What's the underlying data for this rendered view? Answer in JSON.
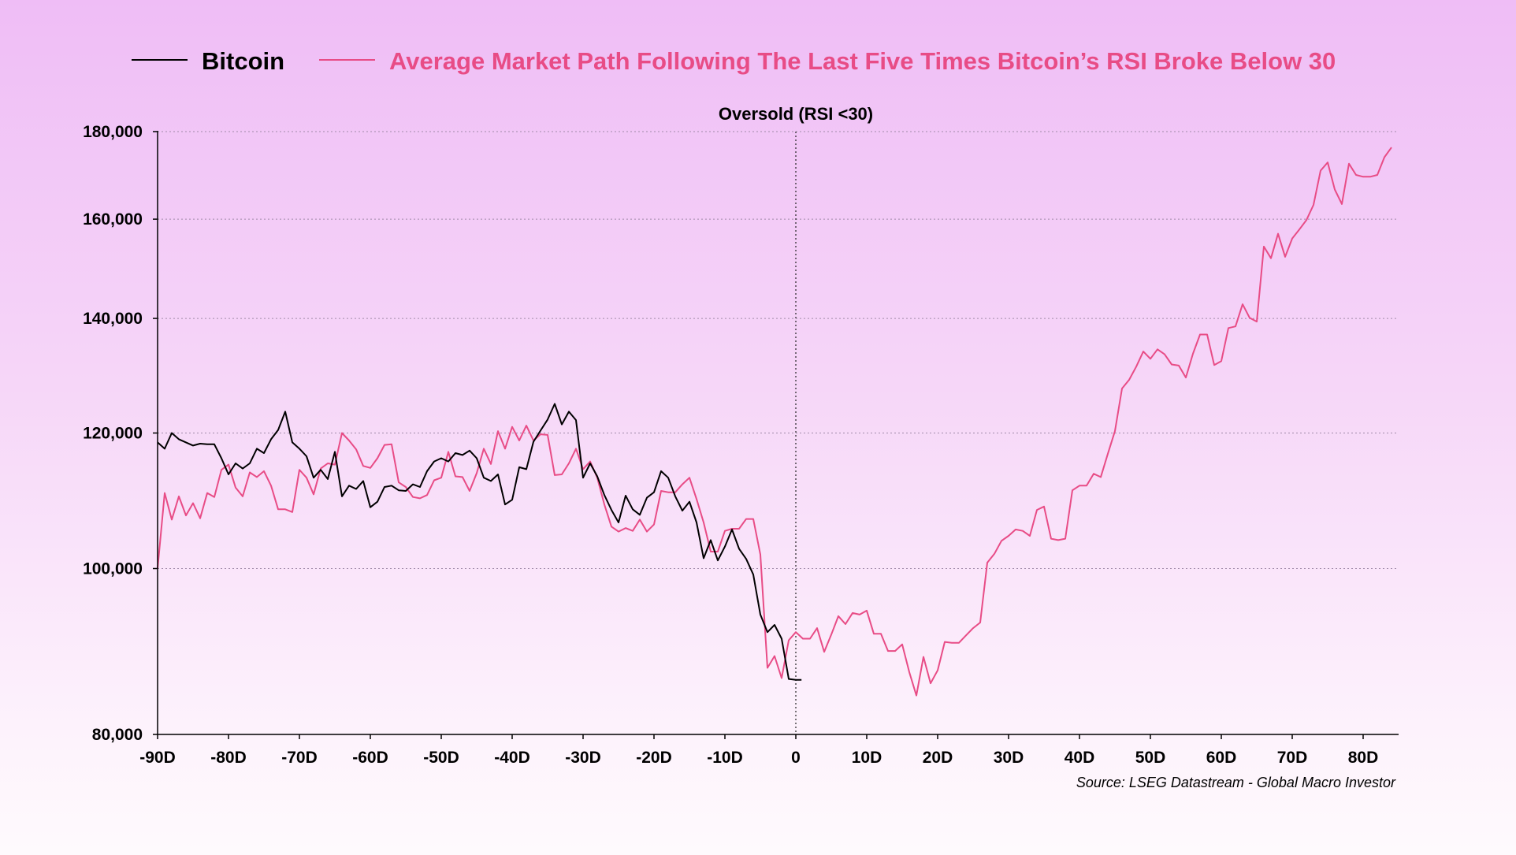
{
  "chart_data": {
    "type": "line",
    "title": "",
    "xlabel": "",
    "ylabel": "",
    "y_scale": "log",
    "xlim": [
      -90,
      86
    ],
    "ylim": [
      80000,
      180000
    ],
    "x_ticks": [
      -90,
      -80,
      -70,
      -60,
      -50,
      -40,
      -30,
      -20,
      -10,
      0,
      10,
      20,
      30,
      40,
      50,
      60,
      70,
      80
    ],
    "x_tick_labels": [
      "-90D",
      "-80D",
      "-70D",
      "-60D",
      "-50D",
      "-40D",
      "-30D",
      "-20D",
      "-10D",
      "0",
      "10D",
      "20D",
      "30D",
      "40D",
      "50D",
      "60D",
      "70D",
      "80D"
    ],
    "y_ticks": [
      80000,
      100000,
      120000,
      140000,
      160000,
      180000
    ],
    "y_tick_labels": [
      "80,000",
      "100,000",
      "120,000",
      "140,000",
      "160,000",
      "180,000"
    ],
    "grid": "horizontal dotted",
    "legend_position": "top",
    "annotation": {
      "x": 0,
      "label": "Oversold (RSI <30)"
    },
    "source": "Source: LSEG Datastream - Global Macro Investor",
    "series": [
      {
        "name": "Bitcoin",
        "color": "#000000",
        "points": [
          [
            -90,
            118500
          ],
          [
            -89,
            117500
          ],
          [
            -88,
            120000
          ],
          [
            -87,
            119000
          ],
          [
            -86,
            118500
          ],
          [
            -85,
            118000
          ],
          [
            -84,
            118300
          ],
          [
            -83,
            118200
          ],
          [
            -82,
            118200
          ],
          [
            -81,
            116000
          ],
          [
            -80,
            113500
          ],
          [
            -79,
            115200
          ],
          [
            -78,
            114400
          ],
          [
            -77,
            115200
          ],
          [
            -76,
            117500
          ],
          [
            -75,
            116800
          ],
          [
            -74,
            119000
          ],
          [
            -73,
            120500
          ],
          [
            -72,
            123500
          ],
          [
            -71,
            118500
          ],
          [
            -70,
            117500
          ],
          [
            -69,
            116300
          ],
          [
            -68,
            113000
          ],
          [
            -67,
            114200
          ],
          [
            -66,
            112800
          ],
          [
            -65,
            117000
          ],
          [
            -64,
            110200
          ],
          [
            -63,
            111800
          ],
          [
            -62,
            111300
          ],
          [
            -61,
            112500
          ],
          [
            -60,
            108600
          ],
          [
            -59,
            109400
          ],
          [
            -58,
            111600
          ],
          [
            -57,
            111800
          ],
          [
            -56,
            111100
          ],
          [
            -55,
            111000
          ],
          [
            -54,
            112000
          ],
          [
            -53,
            111600
          ],
          [
            -52,
            114000
          ],
          [
            -51,
            115500
          ],
          [
            -50,
            116000
          ],
          [
            -49,
            115500
          ],
          [
            -48,
            116800
          ],
          [
            -47,
            116500
          ],
          [
            -46,
            117200
          ],
          [
            -45,
            116000
          ],
          [
            -44,
            113000
          ],
          [
            -43,
            112500
          ],
          [
            -42,
            113500
          ],
          [
            -41,
            109000
          ],
          [
            -40,
            109700
          ],
          [
            -39,
            114600
          ],
          [
            -38,
            114300
          ],
          [
            -37,
            118600
          ],
          [
            -36,
            120400
          ],
          [
            -35,
            122200
          ],
          [
            -34,
            124800
          ],
          [
            -33,
            121400
          ],
          [
            -32,
            123500
          ],
          [
            -31,
            122100
          ],
          [
            -30,
            113000
          ],
          [
            -29,
            115200
          ],
          [
            -28,
            113200
          ],
          [
            -27,
            110400
          ],
          [
            -26,
            108200
          ],
          [
            -25,
            106400
          ],
          [
            -24,
            110300
          ],
          [
            -23,
            108300
          ],
          [
            -22,
            107500
          ],
          [
            -21,
            110000
          ],
          [
            -20,
            110800
          ],
          [
            -19,
            114000
          ],
          [
            -18,
            113000
          ],
          [
            -17,
            110200
          ],
          [
            -16,
            108100
          ],
          [
            -15,
            109400
          ],
          [
            -14,
            106400
          ],
          [
            -13,
            101400
          ],
          [
            -12,
            103900
          ],
          [
            -11,
            101100
          ],
          [
            -10,
            103000
          ],
          [
            -9,
            105400
          ],
          [
            -8,
            102700
          ],
          [
            -7,
            101300
          ],
          [
            -6,
            99200
          ],
          [
            -5,
            94000
          ],
          [
            -4,
            91800
          ],
          [
            -3,
            92700
          ],
          [
            -2,
            91000
          ],
          [
            -1,
            86200
          ],
          [
            0,
            86100
          ],
          [
            0.8,
            86100
          ]
        ]
      },
      {
        "name": "Average Market Path Following The Last Five Times Bitcoin’s RSI Broke Below 30",
        "color": "#e84c86",
        "points": [
          [
            -90,
            100000
          ],
          [
            -89,
            110700
          ],
          [
            -88,
            106800
          ],
          [
            -87,
            110200
          ],
          [
            -86,
            107400
          ],
          [
            -85,
            109200
          ],
          [
            -84,
            107000
          ],
          [
            -83,
            110700
          ],
          [
            -82,
            110100
          ],
          [
            -81,
            114200
          ],
          [
            -80,
            115000
          ],
          [
            -79,
            111500
          ],
          [
            -78,
            110200
          ],
          [
            -77,
            113800
          ],
          [
            -76,
            113100
          ],
          [
            -75,
            114000
          ],
          [
            -74,
            111800
          ],
          [
            -73,
            108300
          ],
          [
            -72,
            108300
          ],
          [
            -71,
            107900
          ],
          [
            -70,
            114200
          ],
          [
            -69,
            113000
          ],
          [
            -68,
            110500
          ],
          [
            -67,
            114400
          ],
          [
            -66,
            115200
          ],
          [
            -65,
            115000
          ],
          [
            -64,
            120000
          ],
          [
            -63,
            118800
          ],
          [
            -62,
            117400
          ],
          [
            -61,
            114800
          ],
          [
            -60,
            114500
          ],
          [
            -59,
            116000
          ],
          [
            -58,
            118100
          ],
          [
            -57,
            118200
          ],
          [
            -56,
            112300
          ],
          [
            -55,
            111600
          ],
          [
            -54,
            110100
          ],
          [
            -53,
            109900
          ],
          [
            -52,
            110400
          ],
          [
            -51,
            112600
          ],
          [
            -50,
            113000
          ],
          [
            -49,
            117000
          ],
          [
            -48,
            113200
          ],
          [
            -47,
            113100
          ],
          [
            -46,
            111000
          ],
          [
            -45,
            113700
          ],
          [
            -44,
            117500
          ],
          [
            -43,
            115100
          ],
          [
            -42,
            120300
          ],
          [
            -41,
            117500
          ],
          [
            -40,
            121000
          ],
          [
            -39,
            118800
          ],
          [
            -38,
            121200
          ],
          [
            -37,
            118800
          ],
          [
            -36,
            119800
          ],
          [
            -35,
            119700
          ],
          [
            -34,
            113400
          ],
          [
            -33,
            113500
          ],
          [
            -32,
            115200
          ],
          [
            -31,
            117500
          ],
          [
            -30,
            114300
          ],
          [
            -29,
            115500
          ],
          [
            -28,
            113000
          ],
          [
            -27,
            109000
          ],
          [
            -26,
            105800
          ],
          [
            -25,
            105100
          ],
          [
            -24,
            105600
          ],
          [
            -23,
            105200
          ],
          [
            -22,
            106800
          ],
          [
            -21,
            105100
          ],
          [
            -20,
            106100
          ],
          [
            -19,
            111000
          ],
          [
            -18,
            110800
          ],
          [
            -17,
            110800
          ],
          [
            -16,
            112000
          ],
          [
            -15,
            113000
          ],
          [
            -14,
            109800
          ],
          [
            -13,
            106400
          ],
          [
            -12,
            102300
          ],
          [
            -11,
            102300
          ],
          [
            -10,
            105200
          ],
          [
            -9,
            105500
          ],
          [
            -8,
            105500
          ],
          [
            -7,
            106900
          ],
          [
            -6,
            106900
          ],
          [
            -5,
            101900
          ],
          [
            -4,
            87500
          ],
          [
            -3,
            88900
          ],
          [
            -2,
            86300
          ],
          [
            -1,
            90800
          ],
          [
            0,
            91800
          ],
          [
            1,
            91000
          ],
          [
            2,
            91000
          ],
          [
            3,
            92300
          ],
          [
            4,
            89400
          ],
          [
            5,
            91500
          ],
          [
            6,
            93800
          ],
          [
            7,
            92800
          ],
          [
            8,
            94200
          ],
          [
            9,
            94000
          ],
          [
            10,
            94500
          ],
          [
            11,
            91600
          ],
          [
            12,
            91600
          ],
          [
            13,
            89500
          ],
          [
            14,
            89500
          ],
          [
            15,
            90300
          ],
          [
            16,
            87000
          ],
          [
            17,
            84300
          ],
          [
            18,
            88800
          ],
          [
            19,
            85700
          ],
          [
            20,
            87200
          ],
          [
            21,
            90600
          ],
          [
            22,
            90500
          ],
          [
            23,
            90500
          ],
          [
            24,
            91400
          ],
          [
            25,
            92300
          ],
          [
            26,
            93000
          ],
          [
            27,
            100800
          ],
          [
            28,
            102000
          ],
          [
            29,
            103800
          ],
          [
            30,
            104500
          ],
          [
            31,
            105400
          ],
          [
            32,
            105200
          ],
          [
            33,
            104500
          ],
          [
            34,
            108200
          ],
          [
            35,
            108700
          ],
          [
            36,
            104100
          ],
          [
            37,
            103900
          ],
          [
            38,
            104100
          ],
          [
            39,
            111100
          ],
          [
            40,
            111800
          ],
          [
            41,
            111800
          ],
          [
            42,
            113600
          ],
          [
            43,
            113100
          ],
          [
            44,
            116700
          ],
          [
            45,
            120300
          ],
          [
            46,
            127400
          ],
          [
            47,
            128900
          ],
          [
            48,
            131200
          ],
          [
            49,
            133900
          ],
          [
            50,
            132600
          ],
          [
            51,
            134300
          ],
          [
            52,
            133400
          ],
          [
            53,
            131600
          ],
          [
            54,
            131400
          ],
          [
            55,
            129300
          ],
          [
            56,
            133500
          ],
          [
            57,
            137000
          ],
          [
            58,
            137000
          ],
          [
            59,
            131500
          ],
          [
            60,
            132200
          ],
          [
            61,
            138200
          ],
          [
            62,
            138500
          ],
          [
            63,
            142700
          ],
          [
            64,
            140100
          ],
          [
            65,
            139400
          ],
          [
            66,
            154200
          ],
          [
            67,
            151800
          ],
          [
            68,
            156900
          ],
          [
            69,
            152100
          ],
          [
            70,
            155900
          ],
          [
            71,
            157800
          ],
          [
            72,
            159800
          ],
          [
            73,
            163100
          ],
          [
            74,
            170800
          ],
          [
            75,
            172700
          ],
          [
            76,
            166500
          ],
          [
            77,
            163300
          ],
          [
            78,
            172400
          ],
          [
            79,
            169800
          ],
          [
            80,
            169400
          ],
          [
            81,
            169400
          ],
          [
            82,
            169800
          ],
          [
            83,
            173900
          ],
          [
            84,
            176200
          ]
        ]
      }
    ]
  }
}
